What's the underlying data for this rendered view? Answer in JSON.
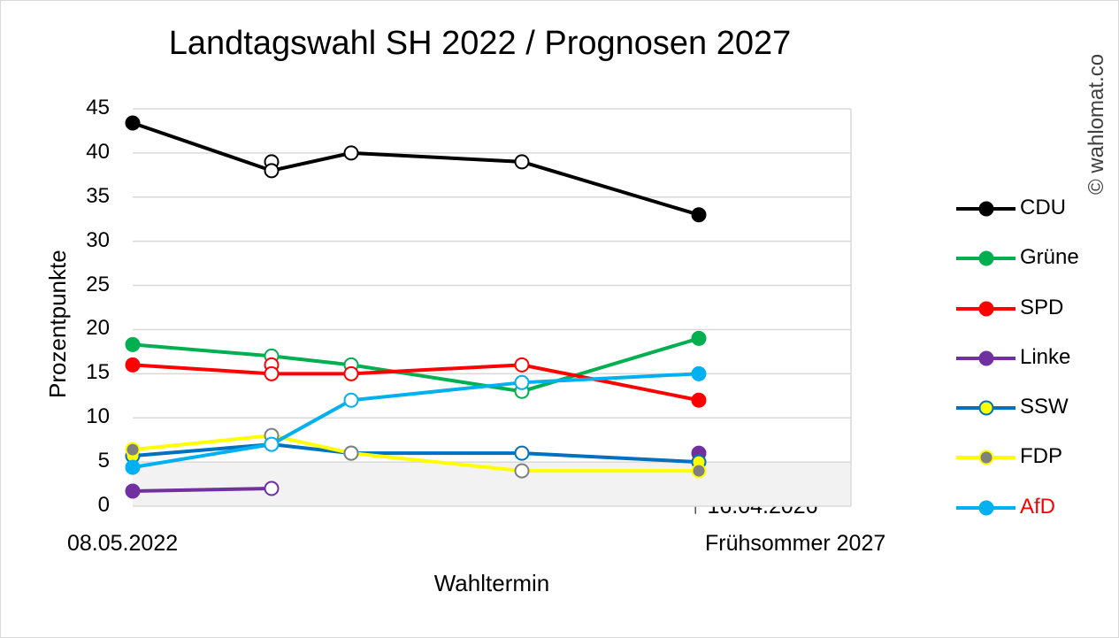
{
  "watermark": "© wahlomat.co",
  "chart_data": {
    "type": "line",
    "title": "Landtagswahl SH 2022 / Prognosen 2027",
    "xlabel": "Wahltermin",
    "ylabel": "Prozentpunkte",
    "x_category_labels": [
      "08.05.2022",
      "Frühsommer 2027"
    ],
    "annotation": "↑ 16.04.2026",
    "ylim": [
      0,
      45
    ],
    "yticks": [
      0,
      5,
      10,
      15,
      20,
      25,
      30,
      35,
      40,
      45
    ],
    "grid": true,
    "shaded_band": [
      0,
      5
    ],
    "legend_position": "right",
    "x_points": [
      0,
      1,
      2,
      3,
      4
    ],
    "series": [
      {
        "name": "CDU",
        "color": "#000000",
        "marker": "#000000",
        "values": [
          43.4,
          39,
          40,
          39,
          33
        ],
        "alt_values": [
          null,
          38,
          null,
          null,
          null
        ]
      },
      {
        "name": "Grüne",
        "color": "#00b050",
        "marker": "#00b050",
        "values": [
          18.3,
          17,
          16,
          13,
          19
        ]
      },
      {
        "name": "SPD",
        "color": "#ff0000",
        "marker": "#ff0000",
        "values": [
          16,
          16,
          15,
          16,
          12
        ],
        "alt_values": [
          null,
          15,
          null,
          null,
          null
        ]
      },
      {
        "name": "Linke",
        "color": "#7030a0",
        "marker": "#7030a0",
        "values": [
          1.7,
          2,
          null,
          null,
          6
        ]
      },
      {
        "name": "SSW",
        "color": "#0070c0",
        "marker": "#ffff00",
        "values": [
          5.7,
          7,
          6,
          6,
          5
        ]
      },
      {
        "name": "FDP",
        "color": "#ffff00",
        "marker": "#808080",
        "values": [
          6.4,
          8,
          6,
          4,
          4
        ]
      },
      {
        "name": "AfD",
        "color": "#00b0f0",
        "marker": "#00b0f0",
        "values": [
          4.4,
          7,
          12,
          14,
          15
        ],
        "label_color": "#ff0000"
      }
    ]
  }
}
